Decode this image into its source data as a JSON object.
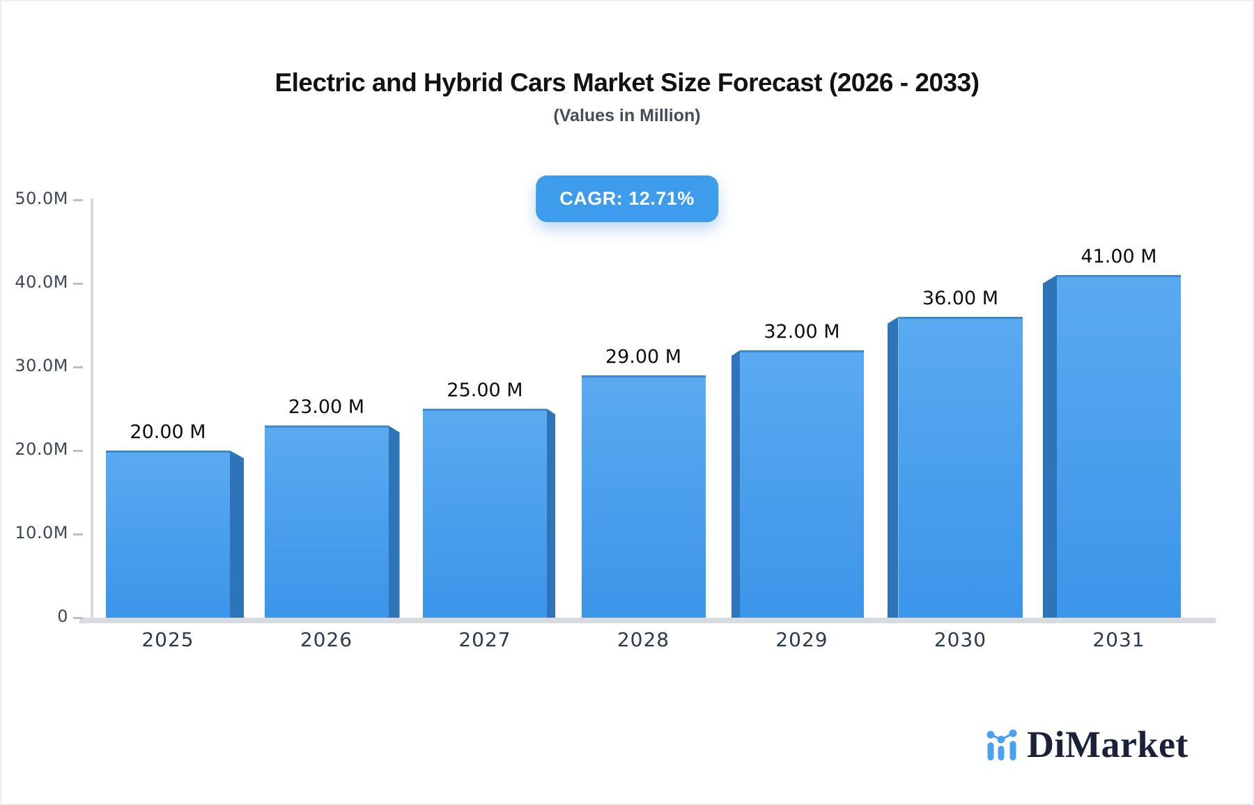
{
  "page": {
    "title": "Electric and Hybrid Cars Market Size Forecast (2026 - 2033)",
    "subtitle": "(Values in Million)",
    "cagr_badge": "CAGR: 12.71%"
  },
  "chart_data": {
    "type": "bar",
    "title": "Electric and Hybrid Cars Market Size Forecast (2026 - 2033)",
    "subtitle": "(Values in Million)",
    "unit": "Million",
    "cagr_percent": 12.71,
    "categories": [
      "2025",
      "2026",
      "2027",
      "2028",
      "2029",
      "2030",
      "2031"
    ],
    "values": [
      20,
      23,
      25,
      29,
      32,
      36,
      41
    ],
    "value_labels": [
      "20.00 M",
      "23.00 M",
      "25.00 M",
      "29.00 M",
      "32.00 M",
      "36.00 M",
      "41.00 M"
    ],
    "ylim": [
      0,
      50
    ],
    "yticks": [
      {
        "value": 0,
        "label": "0"
      },
      {
        "value": 10,
        "label": "10.0M"
      },
      {
        "value": 20,
        "label": "20.0M"
      },
      {
        "value": 30,
        "label": "30.0M"
      },
      {
        "value": 40,
        "label": "40.0M"
      },
      {
        "value": 50,
        "label": "50.0M"
      }
    ],
    "grid": false,
    "legend": false,
    "bar_style": "3d-bevel-toward-center"
  },
  "logo": {
    "text": "DiMarket",
    "icon": "bar-chart-dots-icon"
  },
  "colors": {
    "accent_blue": "#3d9ceb",
    "bar_front_top": "#5aaaf0",
    "bar_front_bottom": "#3b95e9",
    "bar_side": "#2e74b8",
    "bar_top_edge": "#3a8ad8",
    "axis_gray": "#d8dbdf",
    "tick_text": "#3c4654",
    "year_text": "#2e3a4a",
    "value_text": "#0c0e11",
    "title_text": "#101214",
    "subtitle_text": "#454d59",
    "badge_text": "#ffffff",
    "logo_navy": "#1a2138",
    "logo_blue": "#4aa1f3"
  }
}
